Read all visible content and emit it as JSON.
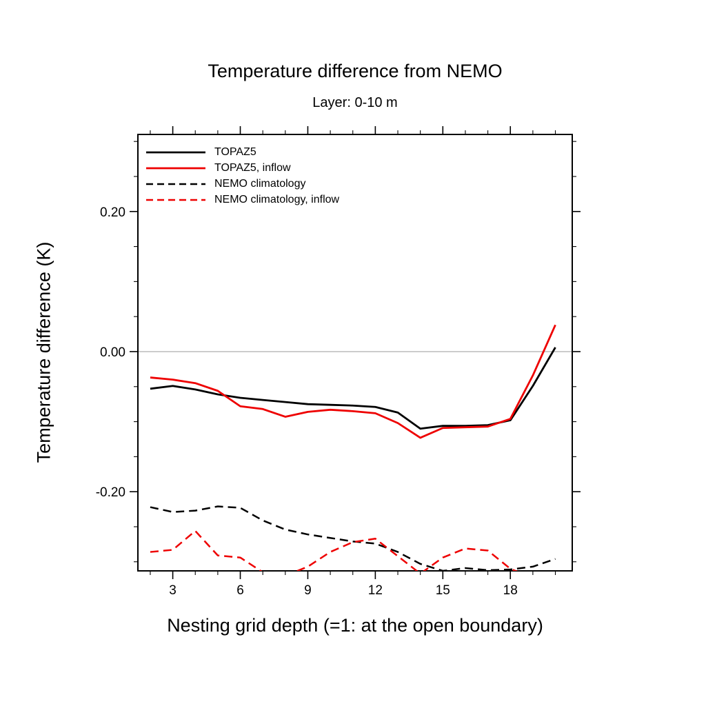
{
  "title": "Temperature difference from NEMO",
  "subtitle": "Layer: 0-10 m",
  "chart_data": {
    "type": "line",
    "title": "Temperature difference from NEMO",
    "subtitle": "Layer: 0-10 m",
    "xlabel": "Nesting grid depth (=1: at the open boundary)",
    "ylabel": "Temperature difference (K)",
    "xlim": [
      1.45,
      20.75
    ],
    "ylim": [
      -0.313,
      0.31
    ],
    "grid": false,
    "zero_line": true,
    "zero_line_color": "#9a9a9a",
    "legend_position": "top-left",
    "x": [
      2,
      3,
      4,
      5,
      6,
      7,
      8,
      9,
      10,
      11,
      12,
      13,
      14,
      15,
      16,
      17,
      18,
      19,
      20
    ],
    "xticks": [
      {
        "value": 3,
        "label": "3"
      },
      {
        "value": 6,
        "label": "6"
      },
      {
        "value": 9,
        "label": "9"
      },
      {
        "value": 12,
        "label": "12"
      },
      {
        "value": 15,
        "label": "15"
      },
      {
        "value": 18,
        "label": "18"
      }
    ],
    "yticks": [
      {
        "value": 0.2,
        "label": "0.20"
      },
      {
        "value": 0.0,
        "label": "0.00"
      },
      {
        "value": -0.2,
        "label": "-0.20"
      }
    ],
    "minor_x_step": 1,
    "minor_y_step": 0.05,
    "series": [
      {
        "name": "TOPAZ5",
        "color": "#000000",
        "style": "solid",
        "values": [
          -0.053,
          -0.049,
          -0.054,
          -0.061,
          -0.066,
          -0.069,
          -0.072,
          -0.075,
          -0.076,
          -0.077,
          -0.079,
          -0.087,
          -0.11,
          -0.106,
          -0.106,
          -0.105,
          -0.098,
          -0.049,
          0.006
        ]
      },
      {
        "name": "TOPAZ5, inflow",
        "color": "#ee0000",
        "style": "solid",
        "values": [
          -0.037,
          -0.04,
          -0.045,
          -0.056,
          -0.078,
          -0.082,
          -0.093,
          -0.086,
          -0.083,
          -0.085,
          -0.088,
          -0.102,
          -0.123,
          -0.109,
          -0.108,
          -0.107,
          -0.096,
          -0.034,
          0.038
        ]
      },
      {
        "name": "NEMO climatology",
        "color": "#000000",
        "style": "dashed",
        "values": [
          -0.222,
          -0.229,
          -0.227,
          -0.221,
          -0.223,
          -0.241,
          -0.254,
          -0.261,
          -0.266,
          -0.271,
          -0.274,
          -0.286,
          -0.303,
          -0.313,
          -0.309,
          -0.312,
          -0.311,
          -0.307,
          -0.296
        ]
      },
      {
        "name": "NEMO climatology, inflow",
        "color": "#ee0000",
        "style": "dashed",
        "values": [
          -0.286,
          -0.283,
          -0.256,
          -0.291,
          -0.294,
          -0.315,
          -0.32,
          -0.307,
          -0.286,
          -0.272,
          -0.267,
          -0.292,
          -0.317,
          -0.294,
          -0.281,
          -0.284,
          -0.31,
          -0.323,
          -0.319
        ]
      }
    ]
  }
}
